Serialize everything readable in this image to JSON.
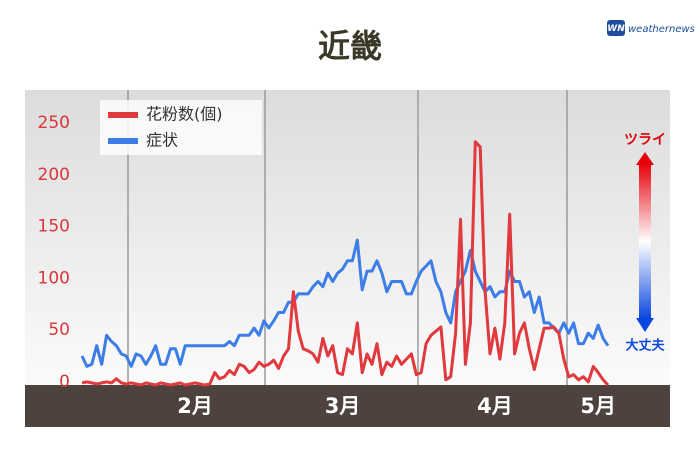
{
  "chart_data": {
    "type": "line",
    "title": "近畿",
    "logo_mark": "WN",
    "source": "weathernews",
    "scale_top_label": "ツライ",
    "scale_bottom_label": "大丈夫",
    "categories": [
      null,
      null,
      null,
      null,
      null,
      null,
      null,
      null,
      null,
      null,
      null,
      null,
      null,
      null,
      null,
      null,
      null,
      null,
      null,
      null,
      null,
      null,
      null,
      "2月",
      null,
      null,
      null,
      null,
      null,
      null,
      null,
      null,
      null,
      null,
      null,
      null,
      null,
      null,
      null,
      null,
      null,
      null,
      null,
      null,
      null,
      null,
      null,
      null,
      null,
      null,
      null,
      null,
      null,
      "3月",
      null,
      null,
      null,
      null,
      null,
      null,
      null,
      null,
      null,
      null,
      null,
      null,
      null,
      null,
      null,
      null,
      null,
      null,
      null,
      null,
      null,
      null,
      null,
      null,
      null,
      null,
      null,
      null,
      null,
      null,
      "4月",
      null,
      null,
      null,
      null,
      null,
      null,
      null,
      null,
      null,
      null,
      null,
      null,
      null,
      null,
      null,
      null,
      null,
      null,
      null,
      null,
      "5月",
      null,
      null
    ],
    "series": [
      {
        "name": "花粉数(個)",
        "color": "#e0393e",
        "values": [
          2,
          3,
          2,
          1,
          2,
          3,
          2,
          6,
          2,
          1,
          2,
          1,
          0,
          2,
          1,
          0,
          2,
          1,
          0,
          1,
          2,
          0,
          1,
          2,
          1,
          0,
          1,
          12,
          6,
          8,
          14,
          10,
          20,
          18,
          12,
          15,
          22,
          18,
          20,
          24,
          16,
          28,
          35,
          90,
          52,
          35,
          33,
          30,
          22,
          45,
          28,
          38,
          12,
          10,
          35,
          30,
          60,
          12,
          30,
          20,
          40,
          10,
          22,
          18,
          28,
          20,
          25,
          30,
          10,
          12,
          40,
          48,
          52,
          56,
          5,
          8,
          50,
          160,
          20,
          60,
          235,
          230,
          90,
          30,
          55,
          25,
          60,
          165,
          30,
          50,
          60,
          35,
          15,
          35,
          55,
          55,
          56,
          50,
          25,
          8,
          10,
          5,
          8,
          3,
          18,
          12,
          5,
          0
        ]
      },
      {
        "name": "症状",
        "color": "#3d7de8",
        "values": [
          28,
          18,
          20,
          38,
          20,
          48,
          42,
          38,
          30,
          28,
          18,
          30,
          28,
          20,
          28,
          38,
          20,
          20,
          35,
          35,
          20,
          38,
          38,
          38,
          38,
          38,
          38,
          38,
          38,
          38,
          42,
          38,
          48,
          48,
          48,
          55,
          48,
          62,
          55,
          62,
          70,
          70,
          80,
          80,
          88,
          88,
          88,
          95,
          100,
          95,
          108,
          100,
          108,
          112,
          120,
          120,
          140,
          92,
          110,
          110,
          120,
          108,
          90,
          100,
          100,
          100,
          88,
          88,
          100,
          110,
          115,
          120,
          100,
          90,
          70,
          60,
          90,
          100,
          110,
          130,
          110,
          100,
          90,
          95,
          85,
          90,
          90,
          110,
          100,
          100,
          85,
          90,
          70,
          85,
          60,
          60,
          55,
          50,
          60,
          50,
          60,
          40,
          40,
          50,
          45,
          58,
          45,
          38
        ]
      }
    ],
    "ylim": [
      0,
      285
    ],
    "yticks": [
      0,
      50,
      100,
      150,
      200,
      250
    ],
    "grid": false,
    "legend": "upper left"
  }
}
